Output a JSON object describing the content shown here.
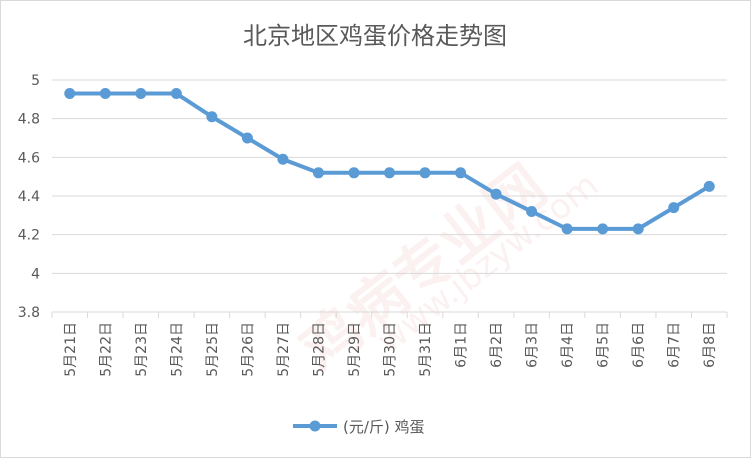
{
  "chart_data": {
    "type": "line",
    "title": "北京地区鸡蛋价格走势图",
    "categories": [
      "5月21日",
      "5月22日",
      "5月23日",
      "5月24日",
      "5月25日",
      "5月26日",
      "5月27日",
      "5月28日",
      "5月29日",
      "5月30日",
      "5月31日",
      "6月1日",
      "6月2日",
      "6月3日",
      "6月4日",
      "6月5日",
      "6月6日",
      "6月7日",
      "6月8日"
    ],
    "series": [
      {
        "name": "(元/斤) 鸡蛋",
        "values": [
          4.93,
          4.93,
          4.93,
          4.93,
          4.81,
          4.7,
          4.59,
          4.52,
          4.52,
          4.52,
          4.52,
          4.52,
          4.41,
          4.32,
          4.23,
          4.23,
          4.23,
          4.34,
          4.45
        ]
      }
    ],
    "ylim": [
      3.8,
      5.0
    ],
    "yticks": [
      "3.8",
      "4",
      "4.2",
      "4.4",
      "4.6",
      "4.8",
      "5"
    ],
    "ytick_values": [
      3.8,
      4.0,
      4.2,
      4.4,
      4.6,
      4.8,
      5.0
    ],
    "grid": true,
    "legend_position": "bottom",
    "color": "#5b9bd5"
  },
  "watermark": {
    "line1": "鸡病专业网",
    "line2": "www.jbzyw.com"
  }
}
